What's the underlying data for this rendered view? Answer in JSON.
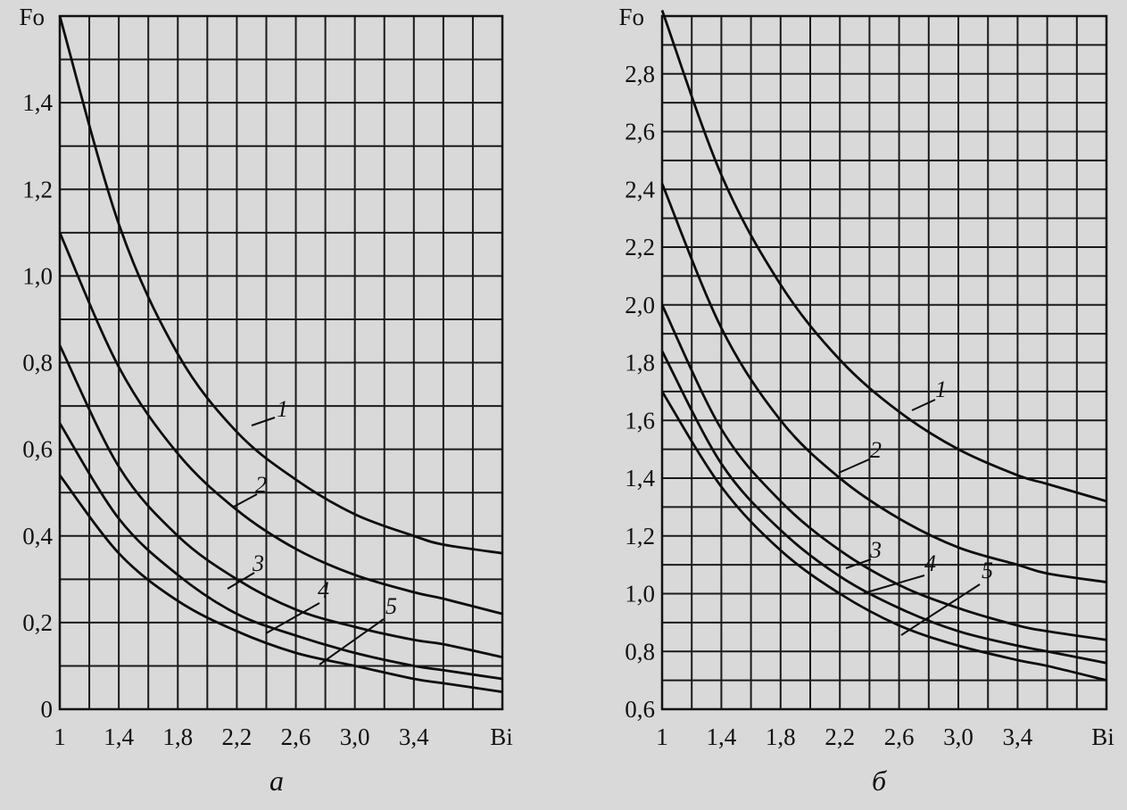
{
  "chart_data": [
    {
      "type": "line",
      "panel_label": "а",
      "xlabel": "Bi",
      "ylabel": "Fo",
      "xlim": [
        1,
        4.0
      ],
      "ylim": [
        0,
        1.6
      ],
      "grid": true,
      "x_ticks": [
        "1",
        "1,4",
        "1,8",
        "2,2",
        "2,6",
        "3,0",
        "3,4"
      ],
      "y_ticks": [
        "0",
        "0,2",
        "0,4",
        "0,6",
        "0,8",
        "1,0",
        "1,2",
        "1,4"
      ],
      "x": [
        1.0,
        1.4,
        1.8,
        2.2,
        2.6,
        3.0,
        3.4,
        3.6,
        4.0
      ],
      "series": [
        {
          "name": "1",
          "values": [
            1.6,
            1.12,
            0.82,
            0.64,
            0.53,
            0.45,
            0.4,
            0.38,
            0.36
          ]
        },
        {
          "name": "2",
          "values": [
            1.1,
            0.79,
            0.59,
            0.46,
            0.37,
            0.31,
            0.27,
            0.255,
            0.22
          ]
        },
        {
          "name": "3",
          "values": [
            0.84,
            0.56,
            0.4,
            0.3,
            0.23,
            0.19,
            0.16,
            0.15,
            0.12
          ]
        },
        {
          "name": "4",
          "values": [
            0.66,
            0.44,
            0.31,
            0.22,
            0.17,
            0.13,
            0.1,
            0.09,
            0.07
          ]
        },
        {
          "name": "5",
          "values": [
            0.54,
            0.36,
            0.25,
            0.18,
            0.13,
            0.1,
            0.07,
            0.06,
            0.04
          ]
        }
      ]
    },
    {
      "type": "line",
      "panel_label": "б",
      "xlabel": "Bi",
      "ylabel": "Fo",
      "xlim": [
        1,
        4.0
      ],
      "ylim": [
        0.6,
        3.0
      ],
      "grid": true,
      "x_ticks": [
        "1",
        "1,4",
        "1,8",
        "2,2",
        "2,6",
        "3,0",
        "3,4"
      ],
      "y_ticks": [
        "0,6",
        "0,8",
        "1,0",
        "1,2",
        "1,4",
        "1,6",
        "1,8",
        "2,0",
        "2,2",
        "2,4",
        "2,6",
        "2,8"
      ],
      "x": [
        1.0,
        1.4,
        1.8,
        2.2,
        2.6,
        3.0,
        3.4,
        3.6,
        4.0
      ],
      "series": [
        {
          "name": "1",
          "values": [
            3.02,
            2.45,
            2.07,
            1.81,
            1.63,
            1.5,
            1.41,
            1.38,
            1.32
          ]
        },
        {
          "name": "2",
          "values": [
            2.42,
            1.92,
            1.6,
            1.4,
            1.26,
            1.16,
            1.1,
            1.07,
            1.04
          ]
        },
        {
          "name": "3",
          "values": [
            2.0,
            1.57,
            1.32,
            1.15,
            1.03,
            0.95,
            0.89,
            0.87,
            0.84
          ]
        },
        {
          "name": "4",
          "values": [
            1.84,
            1.45,
            1.22,
            1.06,
            0.95,
            0.87,
            0.82,
            0.8,
            0.76
          ]
        },
        {
          "name": "5",
          "values": [
            1.7,
            1.37,
            1.15,
            1.0,
            0.89,
            0.82,
            0.77,
            0.75,
            0.7
          ]
        }
      ]
    }
  ]
}
